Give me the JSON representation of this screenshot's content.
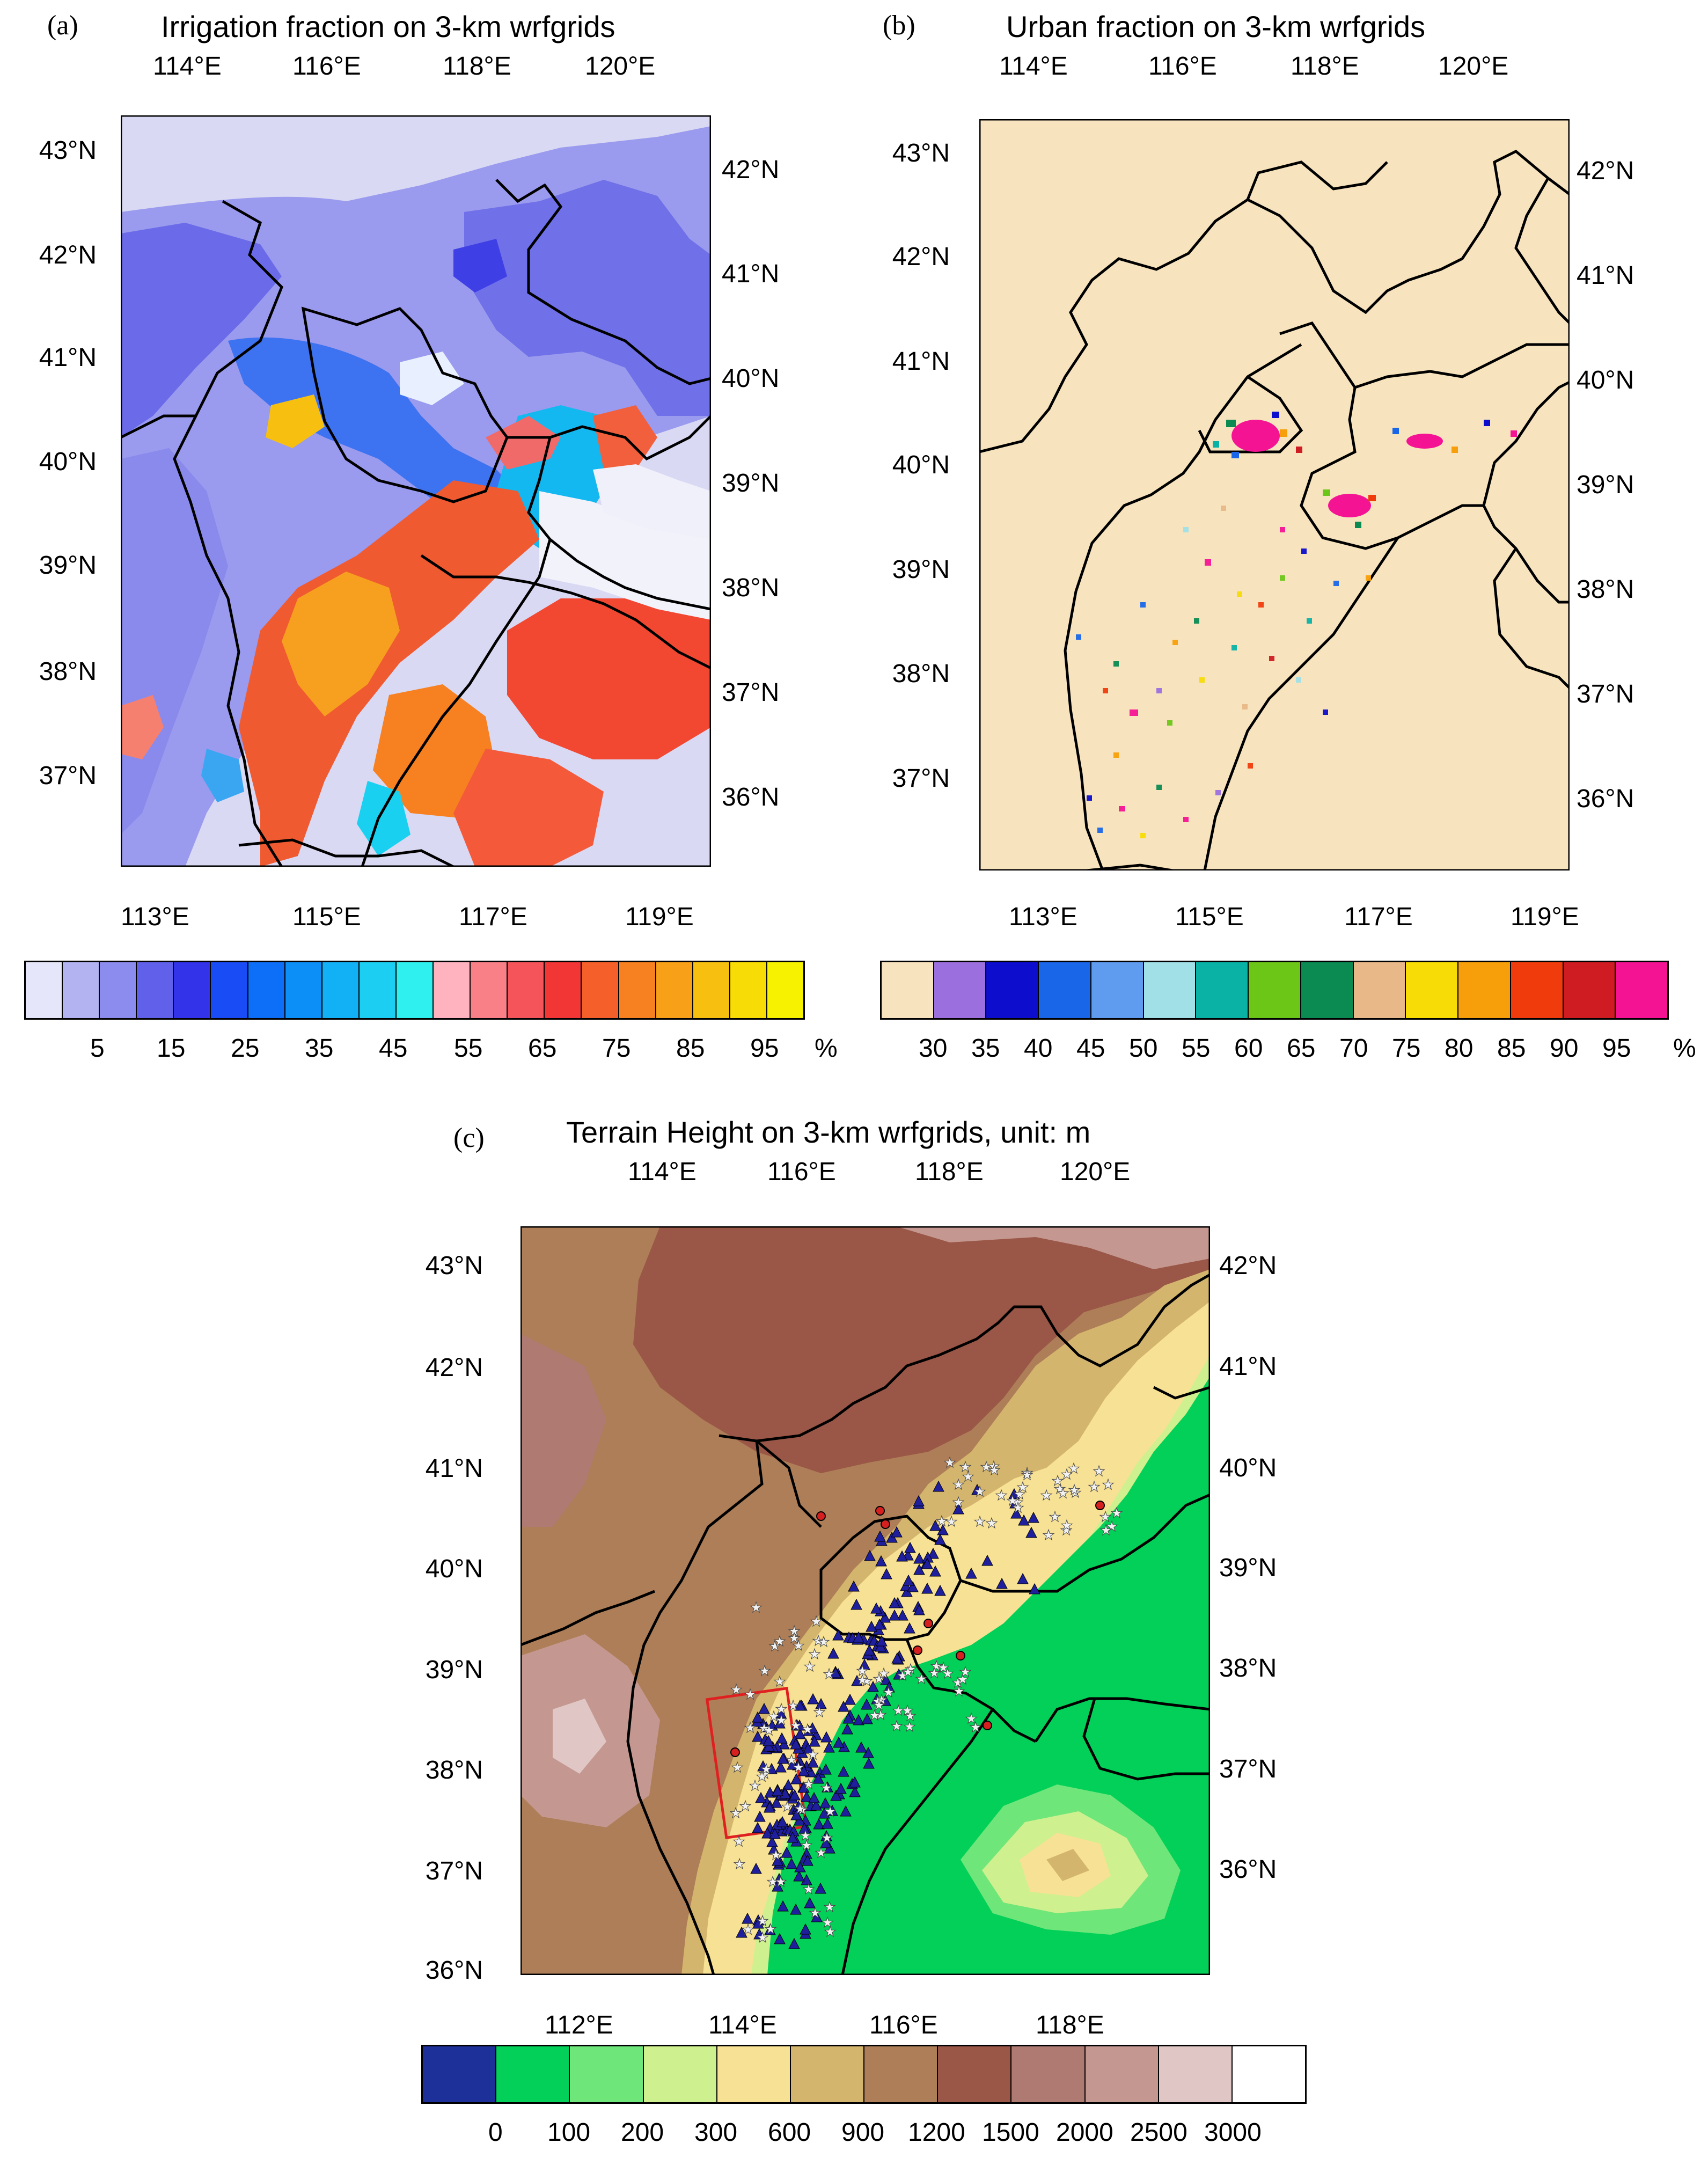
{
  "panels": {
    "a": {
      "tag": "(a)",
      "title": "Irrigation fraction on 3-km wrfgrids",
      "top_lon": [
        "114°E",
        "116°E",
        "118°E",
        "120°E"
      ],
      "bottom_lon": [
        "113°E",
        "115°E",
        "117°E",
        "119°E"
      ],
      "left_lat": [
        "43°N",
        "42°N",
        "41°N",
        "40°N",
        "39°N",
        "38°N",
        "37°N"
      ],
      "right_lat": [
        "42°N",
        "41°N",
        "40°N",
        "39°N",
        "38°N",
        "37°N",
        "36°N"
      ],
      "colorbar_labels": [
        "5",
        "15",
        "25",
        "35",
        "45",
        "55",
        "65",
        "75",
        "85",
        "95"
      ],
      "unit": "%",
      "colors": [
        "#e6e6fa",
        "#b3b3f2",
        "#8c8cef",
        "#6060ea",
        "#3333ea",
        "#1a4cf5",
        "#0d6ef8",
        "#0d8ff8",
        "#12b0f5",
        "#1ccff2",
        "#2ff0ee",
        "#ffb3bf",
        "#fa8088",
        "#f5555a",
        "#f23535",
        "#f5602a",
        "#f78020",
        "#f7a018",
        "#f7c010",
        "#f7dc05",
        "#f7f200"
      ]
    },
    "b": {
      "tag": "(b)",
      "title": "Urban fraction on 3-km wrfgrids",
      "top_lon": [
        "114°E",
        "116°E",
        "118°E",
        "120°E"
      ],
      "bottom_lon": [
        "113°E",
        "115°E",
        "117°E",
        "119°E"
      ],
      "left_lat": [
        "43°N",
        "42°N",
        "41°N",
        "40°N",
        "39°N",
        "38°N",
        "37°N"
      ],
      "right_lat": [
        "42°N",
        "41°N",
        "40°N",
        "39°N",
        "38°N",
        "37°N",
        "36°N"
      ],
      "colorbar_labels": [
        "30",
        "35",
        "40",
        "45",
        "50",
        "55",
        "60",
        "65",
        "70",
        "75",
        "80",
        "85",
        "90",
        "95"
      ],
      "unit": "%",
      "colors": [
        "#f7e4be",
        "#9b6fde",
        "#0d0dcd",
        "#1a66e8",
        "#5f9bef",
        "#a0e0e6",
        "#0ab2a6",
        "#6cc618",
        "#0b8a52",
        "#e8b888",
        "#f7dc05",
        "#f79f0a",
        "#f03c0c",
        "#ce1c22",
        "#f41493"
      ]
    },
    "c": {
      "tag": "(c)",
      "title": "Terrain Height on 3-km wrfgrids, unit: m",
      "top_lon": [
        "114°E",
        "116°E",
        "118°E",
        "120°E"
      ],
      "bottom_lon": [
        "112°E",
        "114°E",
        "116°E",
        "118°E"
      ],
      "left_lat": [
        "43°N",
        "42°N",
        "41°N",
        "40°N",
        "39°N",
        "38°N",
        "37°N",
        "36°N"
      ],
      "right_lat": [
        "42°N",
        "41°N",
        "40°N",
        "39°N",
        "38°N",
        "37°N",
        "36°N"
      ],
      "colorbar_labels": [
        "0",
        "100",
        "200",
        "300",
        "600",
        "900",
        "1200",
        "1500",
        "2000",
        "2500",
        "3000"
      ],
      "colors": [
        "#1d2f98",
        "#03d058",
        "#6ee67a",
        "#cff08e",
        "#f7e195",
        "#d4b56d",
        "#ad7e57",
        "#9a5646",
        "#ae7a72",
        "#c49890",
        "#e0c7c5",
        "#ffffff"
      ],
      "marker_colors": {
        "triangle": "#1f1f9e",
        "star": "#f2f2f2",
        "circle": "#d62020",
        "box": "#e02020"
      }
    }
  }
}
